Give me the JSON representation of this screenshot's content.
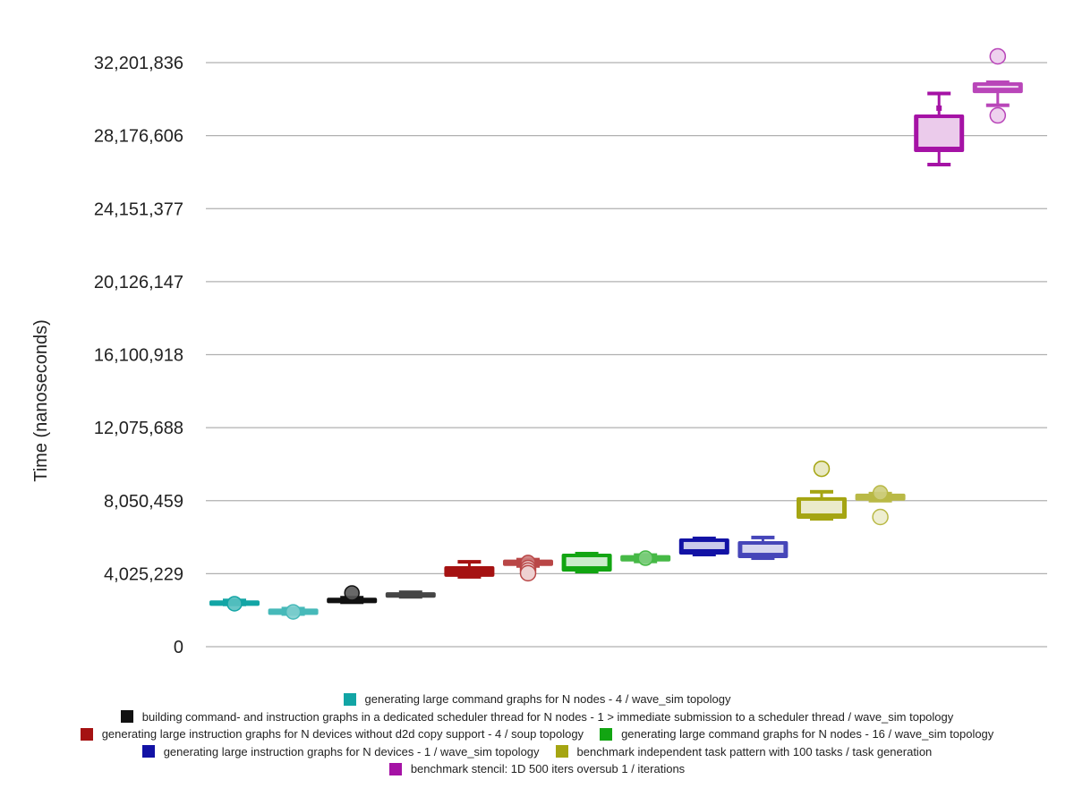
{
  "chart_data": {
    "type": "box",
    "title": "",
    "xlabel": "",
    "ylabel": "Time (nanoseconds)",
    "ylim": [
      0,
      32201836
    ],
    "yticks": [
      "0",
      "4,025,229",
      "8,050,459",
      "12,075,688",
      "16,100,918",
      "20,126,147",
      "24,151,377",
      "28,176,606",
      "32,201,836"
    ],
    "ytick_values": [
      0,
      4025229,
      8050459,
      12075688,
      16100918,
      20126147,
      24151377,
      28176606,
      32201836
    ],
    "grid": true,
    "legend_position": "bottom",
    "series": [
      {
        "name": "generating large command graphs for N nodes - 4 / wave_sim topology",
        "color": "#12a5a5",
        "boxes": [
          {
            "whisker_low": 2330000,
            "q1": 2250000,
            "median": 2370000,
            "q3": 2550000,
            "whisker_high": 2550000,
            "mean": 2370000,
            "outliers": [],
            "light": false
          },
          {
            "whisker_low": 1800000,
            "q1": 1750000,
            "median": 1920000,
            "q3": 2100000,
            "whisker_high": 2100000,
            "mean": 1920000,
            "outliers": [],
            "light": true
          }
        ]
      },
      {
        "name": "building command- and instruction graphs in a dedicated scheduler thread for N nodes - 1 > immediate submission to a scheduler thread / wave_sim topology",
        "color": "#111111",
        "boxes": [
          {
            "whisker_low": 2450000,
            "q1": 2400000,
            "median": 2560000,
            "q3": 2700000,
            "whisker_high": 2700000,
            "mean": 2960000,
            "outliers": [],
            "light": false
          },
          {
            "whisker_low": 2750000,
            "q1": 2700000,
            "median": 2860000,
            "q3": 3000000,
            "whisker_high": 3000000,
            "mean": null,
            "outliers": [],
            "light": true
          }
        ]
      },
      {
        "name": "generating large instruction graphs for N devices without d2d copy support - 4 / soup topology",
        "color": "#a51212",
        "boxes": [
          {
            "whisker_low": 3850000,
            "q1": 3850000,
            "median": 4150000,
            "q3": 4440000,
            "whisker_high": 4680000,
            "mean": null,
            "outliers": [],
            "light": false
          },
          {
            "whisker_low": 4450000,
            "q1": 4450000,
            "median": 4640000,
            "q3": 4800000,
            "whisker_high": 4800000,
            "mean": 4640000,
            "outliers": [
              4340000,
              4200000,
              4050000
            ],
            "light": true
          }
        ]
      },
      {
        "name": "generating large command graphs for N nodes - 16 / wave_sim topology",
        "color": "#12a512",
        "boxes": [
          {
            "whisker_low": 4140000,
            "q1": 4140000,
            "median": 4640000,
            "q3": 5130000,
            "whisker_high": 5130000,
            "mean": null,
            "outliers": [],
            "light": false
          },
          {
            "whisker_low": 4700000,
            "q1": 4700000,
            "median": 4880000,
            "q3": 5050000,
            "whisker_high": 5050000,
            "mean": 4880000,
            "outliers": [],
            "light": true
          }
        ]
      },
      {
        "name": "generating large instruction graphs for N devices - 1 / wave_sim topology",
        "color": "#1212a5",
        "boxes": [
          {
            "whisker_low": 5080000,
            "q1": 5080000,
            "median": 5520000,
            "q3": 5970000,
            "whisker_high": 5970000,
            "mean": null,
            "outliers": [],
            "light": false
          },
          {
            "whisker_low": 4880000,
            "q1": 4880000,
            "median": 5330000,
            "q3": 5820000,
            "whisker_high": 6020000,
            "mean": null,
            "outliers": [],
            "light": true
          }
        ]
      },
      {
        "name": "benchmark independent task pattern with  100 tasks / task generation",
        "color": "#a5a512",
        "boxes": [
          {
            "whisker_low": 7050000,
            "q1": 7050000,
            "median": 7650000,
            "q3": 8240000,
            "whisker_high": 8540000,
            "mean": null,
            "outliers": [
              9810000
            ],
            "light": false
          },
          {
            "whisker_low": 8050000,
            "q1": 8050000,
            "median": 8240000,
            "q3": 8440000,
            "whisker_high": 8440000,
            "mean": 8480000,
            "outliers": [
              7150000
            ],
            "light": true
          }
        ]
      },
      {
        "name": "benchmark stencil: 1D 500 iters oversub 1 / iterations",
        "color": "#a512a5",
        "boxes": [
          {
            "whisker_low": 26580000,
            "q1": 27270000,
            "median": 28200000,
            "q3": 29340000,
            "whisker_high": 30500000,
            "mean": 29690000,
            "outliers": [],
            "light": false
          },
          {
            "whisker_low": 29850000,
            "q1": 30520000,
            "median": 30820000,
            "q3": 31120000,
            "whisker_high": 31120000,
            "mean": null,
            "outliers": [
              32550000,
              29290000
            ],
            "light": true
          }
        ]
      }
    ]
  },
  "legend": {
    "rows": [
      [
        0
      ],
      [
        1
      ],
      [
        2,
        3
      ],
      [
        4,
        5
      ],
      [
        6
      ]
    ]
  }
}
